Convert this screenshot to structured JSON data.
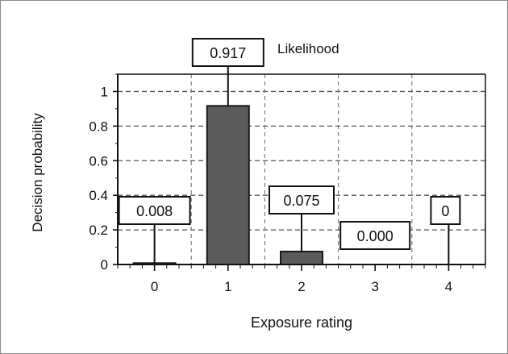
{
  "chart_data": {
    "type": "bar",
    "title": "",
    "xlabel": "Exposure rating",
    "ylabel": "Decision probability",
    "legend_label": "Likelihood",
    "categories": [
      "0",
      "1",
      "2",
      "3",
      "4"
    ],
    "values": [
      0.008,
      0.917,
      0.075,
      0.0,
      0.0
    ],
    "data_labels": [
      "0.008",
      "0.917",
      "0.075",
      "0.000",
      "0"
    ],
    "yticks": [
      "0",
      "0.2",
      "0.4",
      "0.6",
      "0.8",
      "1"
    ],
    "ytick_values": [
      0,
      0.2,
      0.4,
      0.6,
      0.8,
      1.0
    ],
    "ylim": [
      0,
      1.1
    ],
    "grid": true,
    "bar_color": "#5b5b5b"
  }
}
